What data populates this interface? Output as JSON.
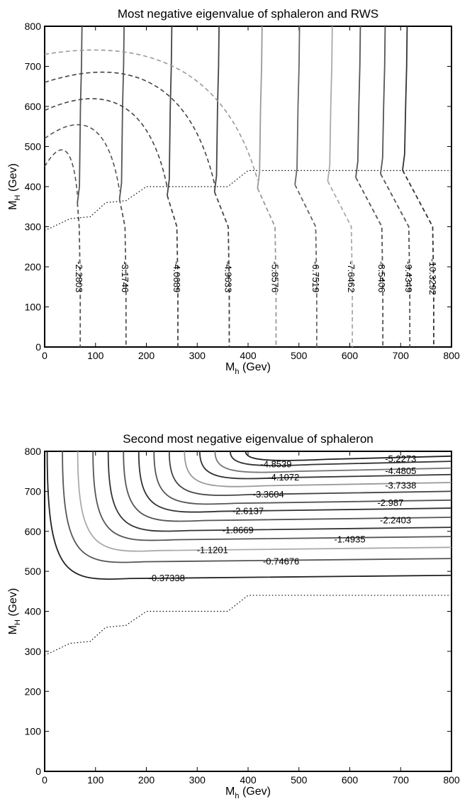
{
  "chart_data": [
    {
      "type": "contour",
      "title": "Most negative eigenvalue of sphaleron and RWS",
      "xlabel": "M_h (Gev)",
      "ylabel": "M_H (Gev)",
      "xlim": [
        0,
        800
      ],
      "ylim": [
        0,
        800
      ],
      "xticks": [
        "0",
        "100",
        "200",
        "300",
        "400",
        "500",
        "600",
        "700",
        "800"
      ],
      "yticks": [
        "0",
        "100",
        "200",
        "300",
        "400",
        "500",
        "600",
        "700",
        "800"
      ],
      "grid": false,
      "contours": [
        {
          "level": "-2.2803",
          "color": "#555555",
          "x_bottom": 70
        },
        {
          "level": "-3.1746",
          "color": "#555555",
          "x_bottom": 160
        },
        {
          "level": "-4.0689",
          "color": "#444444",
          "x_bottom": 262
        },
        {
          "level": "-4.9633",
          "color": "#444444",
          "x_bottom": 363
        },
        {
          "level": "-5.8576",
          "color": "#999999",
          "x_bottom": 455
        },
        {
          "level": "-6.7519",
          "color": "#666666",
          "x_bottom": 535
        },
        {
          "level": "-7.6462",
          "color": "#aaaaaa",
          "x_bottom": 605
        },
        {
          "level": "-8.5406",
          "color": "#555555",
          "x_bottom": 665
        },
        {
          "level": "-9.4349",
          "color": "#555555",
          "x_bottom": 718
        },
        {
          "level": "-10.3292",
          "color": "#333333",
          "x_bottom": 765
        }
      ],
      "boundary_dotted": [
        [
          0,
          290
        ],
        [
          50,
          320
        ],
        [
          90,
          325
        ],
        [
          120,
          360
        ],
        [
          160,
          365
        ],
        [
          200,
          400
        ],
        [
          360,
          400
        ],
        [
          400,
          440
        ],
        [
          800,
          440
        ]
      ]
    },
    {
      "type": "contour",
      "title": "Second most negative eigenvalue of sphaleron",
      "xlabel": "M_h (Gev)",
      "ylabel": "M_H (Gev)",
      "xlim": [
        0,
        800
      ],
      "ylim": [
        0,
        800
      ],
      "xticks": [
        "0",
        "100",
        "200",
        "300",
        "400",
        "500",
        "600",
        "700",
        "800"
      ],
      "yticks": [
        "0",
        "100",
        "200",
        "300",
        "400",
        "500",
        "600",
        "700",
        "800"
      ],
      "grid": false,
      "contours": [
        {
          "level": "-5.2273",
          "color": "#222222",
          "y_right": 788
        },
        {
          "level": "-4.8539",
          "color": "#333333",
          "y_right": 775
        },
        {
          "level": "-4.4805",
          "color": "#777777",
          "y_right": 758
        },
        {
          "level": "-4.1072",
          "color": "#333333",
          "y_right": 742
        },
        {
          "level": "-3.7338",
          "color": "#999999",
          "y_right": 722
        },
        {
          "level": "-3.3604",
          "color": "#444444",
          "y_right": 700
        },
        {
          "level": "-2.987",
          "color": "#555555",
          "y_right": 678
        },
        {
          "level": "-2.6137",
          "color": "#333333",
          "y_right": 658
        },
        {
          "level": "-2.2403",
          "color": "#555555",
          "y_right": 635
        },
        {
          "level": "-1.8669",
          "color": "#333333",
          "y_right": 610
        },
        {
          "level": "-1.4935",
          "color": "#555555",
          "y_right": 587
        },
        {
          "level": "-1.1201",
          "color": "#aaaaaa",
          "y_right": 560
        },
        {
          "level": "-0.74676",
          "color": "#555555",
          "y_right": 532
        },
        {
          "level": "-0.37338",
          "color": "#222222",
          "y_right": 490
        }
      ],
      "boundary_dotted": [
        [
          0,
          290
        ],
        [
          50,
          320
        ],
        [
          90,
          325
        ],
        [
          120,
          360
        ],
        [
          160,
          365
        ],
        [
          200,
          400
        ],
        [
          360,
          400
        ],
        [
          400,
          440
        ],
        [
          800,
          440
        ]
      ]
    }
  ]
}
